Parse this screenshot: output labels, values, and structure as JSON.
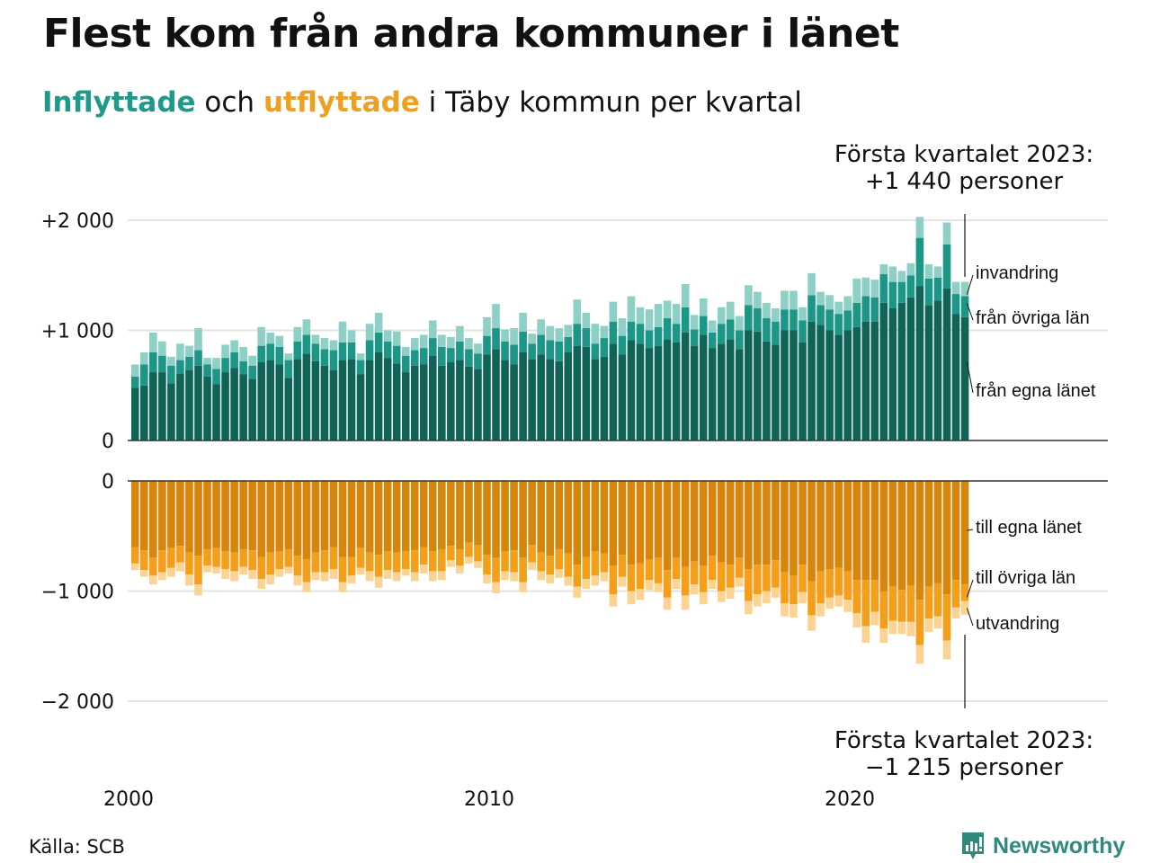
{
  "title": "Flest kom från andra kommuner i länet",
  "subtitle": {
    "part1": "Inflyttade",
    "part2": " och ",
    "part3": "utflyttade",
    "part4": " i Täby kommun per kvartal"
  },
  "annotations": {
    "top_line1": "Första kvartalet 2023:",
    "top_line2": "+1 440 personer",
    "bottom_line1": "Första kvartalet 2023:",
    "bottom_line2": "−1 215 personer"
  },
  "source": "Källa: SCB",
  "brand": "Newsworthy",
  "colors": {
    "in_egna": "#0f6457",
    "in_ovriga": "#1c9686",
    "in_invandring": "#8fd0c6",
    "ut_egna": "#d7860b",
    "ut_ovriga": "#f59e1a",
    "ut_utvandring": "#fbd392",
    "brand": "#2f8a7e",
    "grid": "#e3e3e3"
  },
  "chart_data": [
    {
      "type": "bar",
      "stacked": true,
      "title": "Inflyttade",
      "x_start": "2000Q1",
      "x_end": "2023Q1",
      "x_ticks": [
        "2000",
        "2010",
        "2020"
      ],
      "y_ticks": [
        "0",
        "+1 000",
        "+2 000"
      ],
      "y_tick_values": [
        0,
        1000,
        2000
      ],
      "ylim": [
        0,
        2050
      ],
      "grid": true,
      "series_labels": [
        "från egna länet",
        "från övriga län",
        "invandring"
      ],
      "series": [
        {
          "name": "från egna länet",
          "values": [
            480,
            500,
            620,
            620,
            520,
            610,
            640,
            680,
            580,
            510,
            620,
            660,
            600,
            560,
            710,
            730,
            690,
            570,
            740,
            790,
            720,
            680,
            640,
            730,
            740,
            600,
            730,
            800,
            750,
            700,
            620,
            680,
            690,
            770,
            680,
            710,
            730,
            670,
            650,
            780,
            830,
            730,
            690,
            800,
            740,
            780,
            740,
            720,
            800,
            860,
            850,
            740,
            760,
            880,
            780,
            910,
            880,
            840,
            860,
            920,
            890,
            980,
            860,
            960,
            840,
            880,
            920,
            830,
            1000,
            990,
            900,
            870,
            1000,
            1000,
            890,
            1080,
            1050,
            1000,
            960,
            1000,
            1030,
            1080,
            1080,
            1250,
            1200,
            1250,
            1300,
            1400,
            1230,
            1270,
            1380,
            1150,
            1120
          ]
        },
        {
          "name": "från övriga län",
          "values": [
            100,
            190,
            180,
            150,
            160,
            120,
            120,
            140,
            110,
            140,
            130,
            140,
            120,
            120,
            150,
            150,
            160,
            160,
            160,
            170,
            160,
            150,
            180,
            160,
            150,
            130,
            180,
            180,
            150,
            160,
            150,
            140,
            150,
            160,
            170,
            130,
            170,
            160,
            140,
            170,
            190,
            170,
            180,
            190,
            140,
            180,
            170,
            180,
            140,
            200,
            170,
            140,
            170,
            200,
            170,
            170,
            180,
            160,
            170,
            190,
            170,
            230,
            150,
            170,
            140,
            180,
            180,
            170,
            230,
            210,
            210,
            210,
            190,
            190,
            200,
            240,
            180,
            190,
            190,
            180,
            220,
            230,
            220,
            260,
            240,
            190,
            200,
            440,
            240,
            210,
            400,
            180,
            190
          ]
        },
        {
          "name": "invandring",
          "values": [
            110,
            110,
            180,
            130,
            80,
            150,
            100,
            200,
            60,
            100,
            120,
            110,
            130,
            90,
            170,
            100,
            100,
            60,
            130,
            140,
            80,
            100,
            90,
            190,
            110,
            60,
            150,
            180,
            100,
            130,
            80,
            110,
            120,
            160,
            110,
            100,
            140,
            100,
            90,
            170,
            220,
            110,
            150,
            170,
            90,
            140,
            130,
            120,
            110,
            220,
            140,
            180,
            110,
            180,
            160,
            230,
            150,
            190,
            210,
            160,
            180,
            210,
            130,
            160,
            110,
            150,
            160,
            130,
            180,
            150,
            140,
            120,
            170,
            170,
            120,
            200,
            120,
            130,
            110,
            130,
            220,
            170,
            160,
            90,
            140,
            100,
            110,
            190,
            130,
            100,
            200,
            110,
            130
          ]
        }
      ]
    },
    {
      "type": "bar",
      "stacked": true,
      "title": "Utflyttade",
      "x_start": "2000Q1",
      "x_end": "2023Q1",
      "x_ticks": [
        "2000",
        "2010",
        "2020"
      ],
      "y_ticks": [
        "0",
        "−1 000",
        "−2 000"
      ],
      "y_tick_values": [
        0,
        -1000,
        -2000
      ],
      "ylim": [
        -2050,
        0
      ],
      "grid": true,
      "series_labels": [
        "till egna länet",
        "till övriga län",
        "utvandring"
      ],
      "series": [
        {
          "name": "till egna länet",
          "values": [
            -600,
            -630,
            -700,
            -630,
            -610,
            -590,
            -650,
            -680,
            -620,
            -610,
            -640,
            -650,
            -620,
            -630,
            -690,
            -650,
            -640,
            -620,
            -680,
            -710,
            -650,
            -630,
            -600,
            -690,
            -690,
            -610,
            -650,
            -670,
            -640,
            -650,
            -640,
            -630,
            -600,
            -640,
            -620,
            -590,
            -620,
            -560,
            -580,
            -670,
            -700,
            -640,
            -630,
            -700,
            -580,
            -650,
            -680,
            -620,
            -660,
            -760,
            -690,
            -640,
            -660,
            -770,
            -670,
            -760,
            -750,
            -710,
            -700,
            -810,
            -700,
            -780,
            -730,
            -770,
            -680,
            -740,
            -760,
            -700,
            -800,
            -760,
            -760,
            -720,
            -830,
            -860,
            -760,
            -910,
            -820,
            -800,
            -790,
            -820,
            -900,
            -900,
            -900,
            -1000,
            -960,
            -990,
            -950,
            -1080,
            -960,
            -930,
            -1030,
            -900,
            -940
          ]
        },
        {
          "name": "till övriga län",
          "values": [
            -150,
            -180,
            -160,
            -200,
            -180,
            -150,
            -200,
            -260,
            -150,
            -170,
            -160,
            -170,
            -160,
            -180,
            -200,
            -200,
            -160,
            -160,
            -180,
            -210,
            -180,
            -200,
            -200,
            -230,
            -170,
            -180,
            -170,
            -200,
            -170,
            -180,
            -160,
            -200,
            -160,
            -180,
            -200,
            -130,
            -150,
            -130,
            -150,
            -180,
            -220,
            -180,
            -200,
            -220,
            -160,
            -170,
            -170,
            -180,
            -210,
            -200,
            -200,
            -220,
            -170,
            -260,
            -200,
            -240,
            -230,
            -190,
            -230,
            -250,
            -190,
            -260,
            -210,
            -240,
            -220,
            -260,
            -210,
            -180,
            -290,
            -270,
            -240,
            -250,
            -280,
            -260,
            -250,
            -310,
            -290,
            -260,
            -250,
            -260,
            -300,
            -420,
            -290,
            -340,
            -310,
            -290,
            -330,
            -410,
            -290,
            -300,
            -420,
            -250,
            -150
          ]
        },
        {
          "name": "utvandring",
          "values": [
            -60,
            -60,
            -80,
            -70,
            -80,
            -80,
            -100,
            -100,
            -60,
            -60,
            -90,
            -90,
            -70,
            -80,
            -90,
            -90,
            -70,
            -60,
            -90,
            -90,
            -70,
            -80,
            -90,
            -90,
            -70,
            -60,
            -90,
            -100,
            -80,
            -80,
            -60,
            -80,
            -80,
            -90,
            -80,
            -60,
            -70,
            -60,
            -60,
            -80,
            -100,
            -80,
            -80,
            -90,
            -70,
            -80,
            -80,
            -80,
            -80,
            -100,
            -90,
            -90,
            -80,
            -110,
            -90,
            -120,
            -100,
            -90,
            -80,
            -110,
            -90,
            -130,
            -90,
            -110,
            -80,
            -100,
            -100,
            -80,
            -120,
            -110,
            -110,
            -90,
            -120,
            -120,
            -100,
            -140,
            -120,
            -100,
            -100,
            -110,
            -130,
            -150,
            -120,
            -130,
            -120,
            -110,
            -130,
            -170,
            -120,
            -110,
            -170,
            -100,
            -125
          ]
        }
      ]
    }
  ]
}
